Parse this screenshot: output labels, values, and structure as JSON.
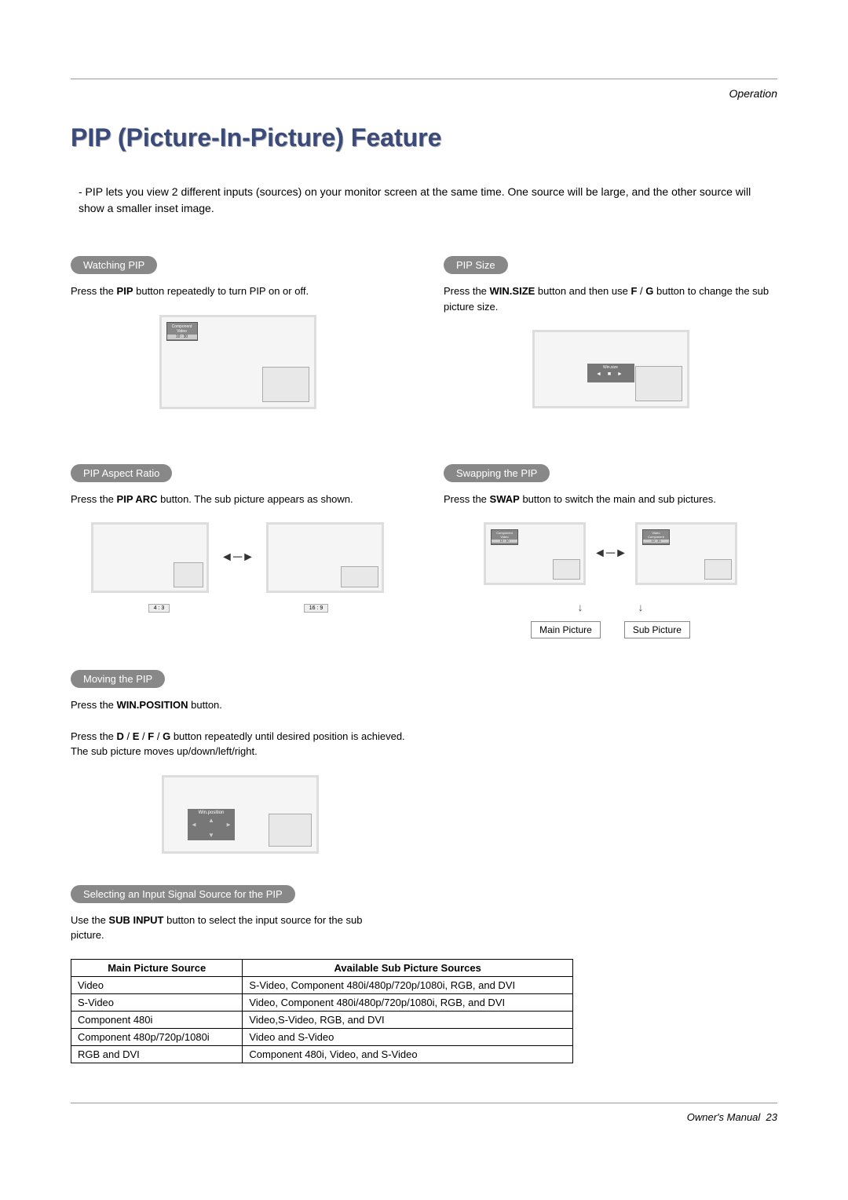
{
  "header": {
    "section_label": "Operation"
  },
  "title": "PIP (Picture-In-Picture) Feature",
  "intro": "-  PIP lets you view 2 different inputs (sources) on your monitor screen at the same time. One source will be large, and the other source will show a smaller inset image.",
  "watching": {
    "pill": "Watching PIP",
    "text_a": "Press the ",
    "text_bold": "PIP",
    "text_b": " button repeatedly to turn PIP on or off.",
    "illus_source_top": "Component",
    "illus_source_mid": "Video",
    "illus_source_bot": "10 : 30"
  },
  "size": {
    "pill": "PIP Size",
    "text_a": "Press the ",
    "text_bold": "WIN.SIZE",
    "text_b": " button and then use ",
    "key1": "F",
    "sep": " / ",
    "key2": "G",
    "text_c": " button to change the sub picture size.",
    "illus_label": "Win.size"
  },
  "aspect": {
    "pill": "PIP Aspect Ratio",
    "text_a": "Press the ",
    "text_bold": "PIP ARC",
    "text_b": " button. The sub picture appears as shown.",
    "label_left": "4 : 3",
    "label_right": "16 : 9"
  },
  "swap": {
    "pill": "Swapping the PIP",
    "text_a": "Press the ",
    "text_bold": "SWAP",
    "text_b": " button to switch the main and sub pictures.",
    "left_top": "Component",
    "left_mid": "Video",
    "right_top": "Video",
    "right_mid": "Component",
    "time": "10 : 30",
    "main_label": "Main Picture",
    "sub_label": "Sub Picture"
  },
  "moving": {
    "pill": "Moving the PIP",
    "line1_a": "Press the ",
    "line1_bold": "WIN.POSITION",
    "line1_b": " button.",
    "line2_a": "Press the ",
    "k1": "D",
    "sep": " / ",
    "k2": "E",
    "k3": "F",
    "k4": "G",
    "line2_b": " button repeatedly until desired position is achieved. The sub picture moves up/down/left/right.",
    "illus_label": "Win.position"
  },
  "selecting": {
    "pill": "Selecting an Input Signal Source for the PIP",
    "text_a": "Use the ",
    "text_bold": "SUB INPUT",
    "text_b": " button to select the input source for the sub picture.",
    "table": {
      "col1": "Main Picture Source",
      "col2": "Available Sub Picture Sources",
      "rows": [
        [
          "Video",
          "S-Video, Component 480i/480p/720p/1080i, RGB, and DVI"
        ],
        [
          "S-Video",
          "Video, Component 480i/480p/720p/1080i, RGB, and DVI"
        ],
        [
          "Component 480i",
          "Video,S-Video, RGB, and DVI"
        ],
        [
          "Component 480p/720p/1080i",
          "Video and S-Video"
        ],
        [
          "RGB and DVI",
          "Component 480i, Video, and S-Video"
        ]
      ]
    }
  },
  "footer": {
    "text": "Owner's Manual",
    "page": "23"
  },
  "colors": {
    "title_color": "#3a4a7a",
    "pill_bg": "#888888",
    "illus_bg": "#f5f5f5",
    "illus_border": "#dddddd"
  }
}
